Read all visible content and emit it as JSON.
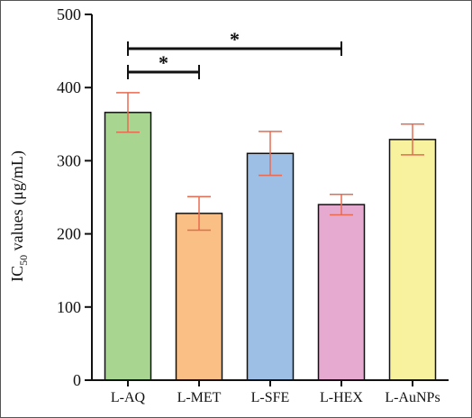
{
  "chart_data": {
    "type": "bar",
    "categories": [
      "L-AQ",
      "L-MET",
      "L-SFE",
      "L-HEX",
      "L-AuNPs"
    ],
    "values": [
      366,
      228,
      310,
      240,
      329
    ],
    "error": [
      27,
      23,
      30,
      14,
      21
    ],
    "colors": [
      "#a8d690",
      "#f9bf84",
      "#9dbfe6",
      "#e6a9cf",
      "#f8f29e"
    ],
    "error_color": "#e86a50",
    "ylabel_main": "IC",
    "ylabel_sub": "50",
    "ylabel_rest": " values (μg/mL)",
    "ylim": [
      0,
      500
    ],
    "yticks": [
      "0",
      "100",
      "200",
      "300",
      "400",
      "500"
    ],
    "significance": [
      {
        "from": "L-AQ",
        "to": "L-MET",
        "label": "*"
      },
      {
        "from": "L-AQ",
        "to": "L-HEX",
        "label": "*"
      }
    ]
  }
}
